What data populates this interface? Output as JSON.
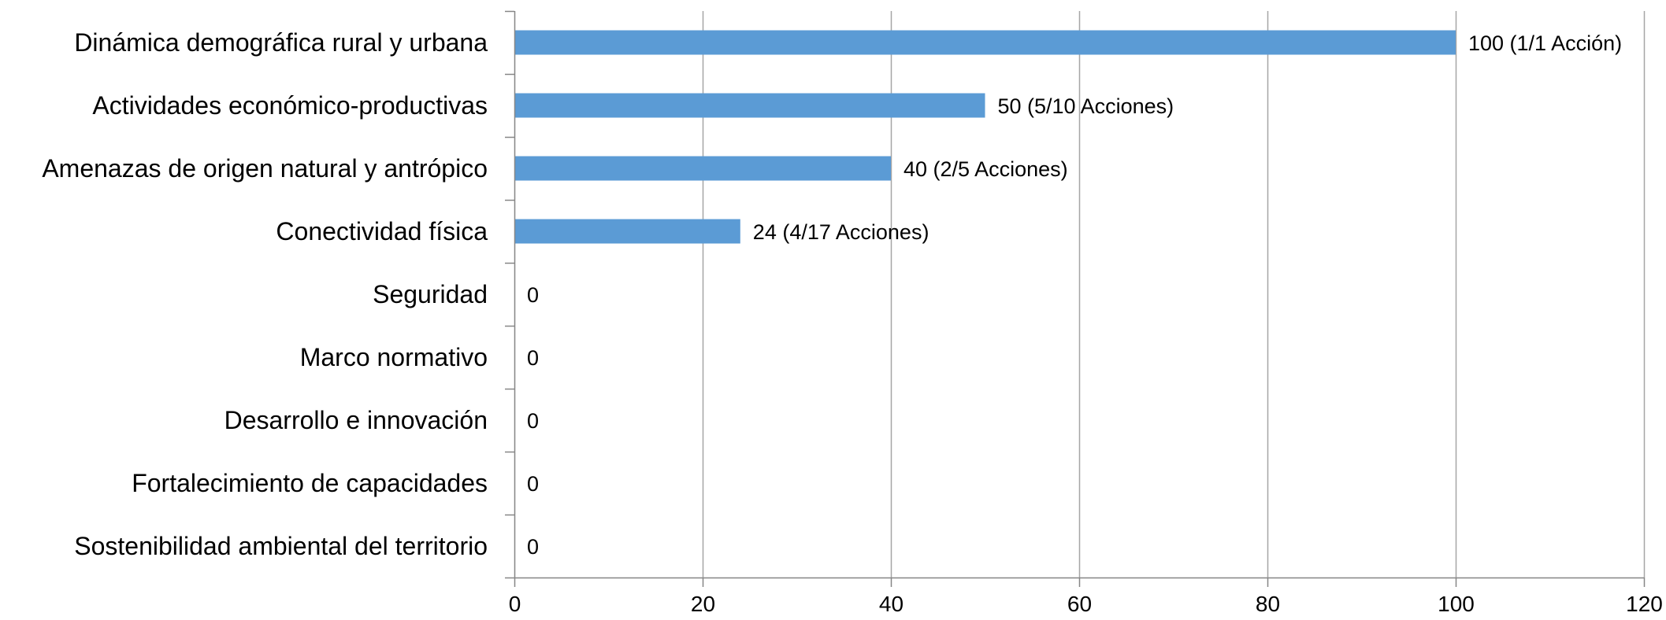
{
  "chart_data": {
    "type": "bar",
    "orientation": "horizontal",
    "title": "",
    "xlabel": "",
    "ylabel": "",
    "categories": [
      "Dinámica demográfica rural y urbana",
      "Actividades económico-productivas",
      "Amenazas de origen natural y antrópico",
      "Conectividad física",
      "Seguridad",
      "Marco normativo",
      "Desarrollo e innovación",
      "Fortalecimiento de capacidades",
      "Sostenibilidad ambiental del territorio"
    ],
    "values": [
      100,
      50,
      40,
      24,
      0,
      0,
      0,
      0,
      0
    ],
    "data_labels": [
      "100 (1/1 Acción)",
      "50 (5/10 Acciones)",
      "40 (2/5 Acciones)",
      "24 (4/17 Acciones)",
      "0",
      "0",
      "0",
      "0",
      "0"
    ],
    "xlim": [
      0,
      120
    ],
    "xticks": [
      0,
      20,
      40,
      60,
      80,
      100,
      120
    ],
    "xtick_labels": [
      "0",
      "20",
      "40",
      "60",
      "80",
      "100",
      "120"
    ],
    "grid": true,
    "legend": "none",
    "bar_color": "#5B9BD5",
    "grid_color": "#A6A6A6",
    "axis_color": "#868686"
  }
}
